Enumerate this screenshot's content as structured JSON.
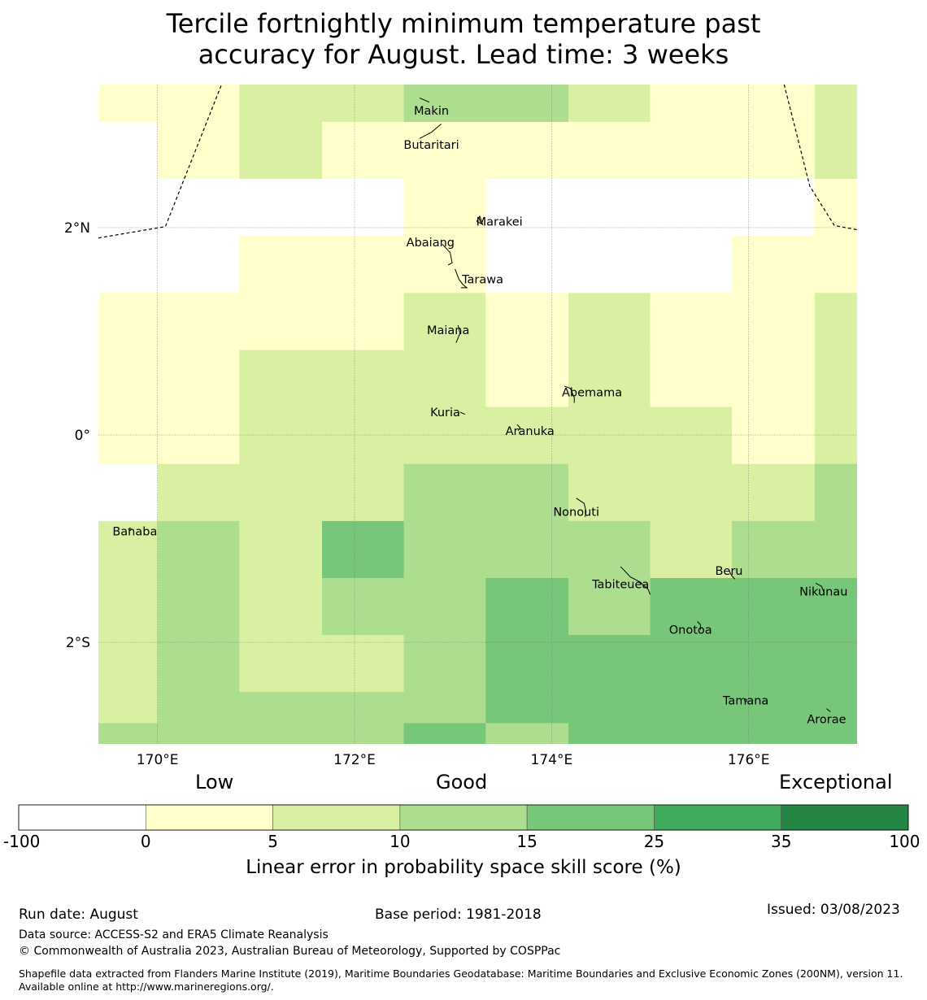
{
  "title": {
    "line1": "Tercile fortnightly minimum temperature past",
    "line2": "accuracy for August. Lead time: 3 weeks"
  },
  "map": {
    "lon_range": [
      169.4,
      177.1
    ],
    "lat_range": [
      -2.98,
      3.38
    ],
    "lon_ticks": [
      {
        "value": 170,
        "label": "170°E"
      },
      {
        "value": 172,
        "label": "172°E"
      },
      {
        "value": 174,
        "label": "174°E"
      },
      {
        "value": 176,
        "label": "176°E"
      }
    ],
    "lat_ticks": [
      {
        "value": 2,
        "label": "2°N"
      },
      {
        "value": 0,
        "label": "0°"
      },
      {
        "value": -2,
        "label": "2°S"
      }
    ],
    "grid_lon_edges": [
      169.4,
      170.0,
      170.83,
      171.67,
      172.5,
      173.33,
      174.17,
      175.0,
      175.83,
      176.67,
      177.1
    ],
    "grid_lat_edges": [
      3.38,
      3.02,
      2.47,
      1.92,
      1.37,
      0.82,
      0.27,
      -0.28,
      -0.83,
      -1.38,
      -1.93,
      -2.48,
      -2.78,
      -2.98
    ],
    "cell_classes": [
      [
        1,
        1,
        2,
        2,
        3,
        3,
        2,
        1,
        1,
        2
      ],
      [
        0,
        1,
        2,
        1,
        1,
        1,
        1,
        1,
        1,
        2
      ],
      [
        0,
        0,
        0,
        0,
        1,
        0,
        0,
        0,
        0,
        1
      ],
      [
        0,
        0,
        1,
        1,
        1,
        0,
        0,
        0,
        1,
        1
      ],
      [
        1,
        1,
        1,
        1,
        2,
        1,
        2,
        1,
        1,
        2
      ],
      [
        1,
        1,
        2,
        2,
        2,
        1,
        2,
        1,
        1,
        2
      ],
      [
        1,
        1,
        2,
        2,
        2,
        2,
        2,
        2,
        1,
        2
      ],
      [
        0,
        2,
        2,
        2,
        3,
        3,
        2,
        2,
        2,
        3
      ],
      [
        2,
        3,
        2,
        4,
        3,
        3,
        3,
        2,
        3,
        3
      ],
      [
        2,
        3,
        2,
        3,
        3,
        4,
        3,
        4,
        4,
        4
      ],
      [
        2,
        3,
        2,
        2,
        3,
        4,
        4,
        4,
        4,
        4
      ],
      [
        2,
        3,
        3,
        3,
        3,
        4,
        4,
        4,
        4,
        4
      ],
      [
        3,
        3,
        3,
        3,
        4,
        3,
        4,
        4,
        4,
        4
      ]
    ],
    "islands": [
      {
        "name": "Makin",
        "lon": 172.78,
        "lat": 3.13
      },
      {
        "name": "Butaritari",
        "lon": 172.78,
        "lat": 2.8
      },
      {
        "name": "Marakei",
        "lon": 173.47,
        "lat": 2.06
      },
      {
        "name": "Abaiang",
        "lon": 172.77,
        "lat": 1.86
      },
      {
        "name": "Tarawa",
        "lon": 173.3,
        "lat": 1.5
      },
      {
        "name": "Maiana",
        "lon": 172.95,
        "lat": 1.01
      },
      {
        "name": "Abemama",
        "lon": 174.41,
        "lat": 0.41
      },
      {
        "name": "Kuria",
        "lon": 172.92,
        "lat": 0.22
      },
      {
        "name": "Aranuka",
        "lon": 173.78,
        "lat": 0.04
      },
      {
        "name": "Nonouti",
        "lon": 174.25,
        "lat": -0.74
      },
      {
        "name": "Banaba",
        "lon": 169.77,
        "lat": -0.93
      },
      {
        "name": "Beru",
        "lon": 175.8,
        "lat": -1.31
      },
      {
        "name": "Tabiteuea",
        "lon": 174.7,
        "lat": -1.44
      },
      {
        "name": "Nikunau",
        "lon": 176.76,
        "lat": -1.51
      },
      {
        "name": "Onotoa",
        "lon": 175.41,
        "lat": -1.88
      },
      {
        "name": "Tamana",
        "lon": 175.97,
        "lat": -2.56
      },
      {
        "name": "Arorae",
        "lon": 176.79,
        "lat": -2.74
      }
    ],
    "boundary_west": [
      [
        169.4,
        1.9
      ],
      [
        170.08,
        2.01
      ],
      [
        170.65,
        3.38
      ]
    ],
    "boundary_east": [
      [
        176.36,
        3.38
      ],
      [
        176.62,
        2.4
      ],
      [
        176.87,
        2.02
      ],
      [
        177.1,
        1.98
      ]
    ]
  },
  "colorbar": {
    "headers": {
      "low": "Low",
      "good": "Good",
      "exceptional": "Exceptional"
    },
    "ticks": [
      "-100",
      "0",
      "5",
      "10",
      "15",
      "25",
      "35",
      "100"
    ],
    "colors": [
      "#ffffff",
      "#ffffcc",
      "#d9f0a3",
      "#addd8e",
      "#78c679",
      "#41ab5d",
      "#238443"
    ],
    "label": "Linear error in probability space skill score (%)"
  },
  "footer": {
    "run_date": "Run date: August",
    "base_period": "Base period: 1981-2018",
    "issued": "Issued: 03/08/2023",
    "data_source": "Data source: ACCESS-S2 and ERA5 Climate Reanalysis",
    "copyright": "© Commonwealth of Australia 2023, Australian Bureau of Meteorology, Supported by COSPPac",
    "shapefile": "Shapefile data extracted from Flanders Marine Institute (2019), Maritime Boundaries Geodatabase: Maritime Boundaries and Exclusive Economic Zones (200NM), version 11. Available online at http://www.marineregions.org/."
  }
}
